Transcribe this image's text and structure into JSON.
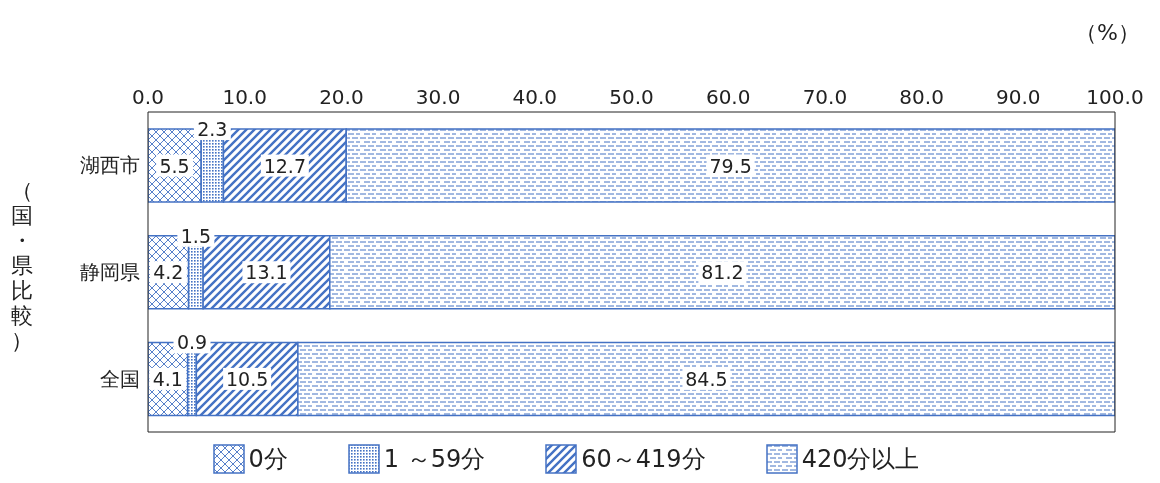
{
  "chart_data": {
    "type": "bar",
    "orientation": "horizontal",
    "stacked": true,
    "ylabel": "（国・県比較）",
    "annotations": [
      "（%）"
    ],
    "categories": [
      "湖西市",
      "静岡県",
      "全国"
    ],
    "series": [
      {
        "name": "0分",
        "color": "#4472c4",
        "values": [
          5.5,
          4.2,
          4.1
        ]
      },
      {
        "name": "1 ～59分",
        "color": "#4472c4",
        "values": [
          2.3,
          1.5,
          0.9
        ]
      },
      {
        "name": "60～419分",
        "color": "#4472c4",
        "values": [
          12.7,
          13.1,
          10.5
        ]
      },
      {
        "name": "420分以上",
        "color": "#4472c4",
        "values": [
          79.5,
          81.2,
          84.5
        ]
      }
    ],
    "xlim": [
      0,
      100
    ],
    "xticks": [
      {
        "value": 0,
        "label": "0.0"
      },
      {
        "value": 10,
        "label": "10.0"
      },
      {
        "value": 20,
        "label": "20.0"
      },
      {
        "value": 30,
        "label": "30.0"
      },
      {
        "value": 40,
        "label": "40.0"
      },
      {
        "value": 50,
        "label": "50.0"
      },
      {
        "value": 60,
        "label": "60.0"
      },
      {
        "value": 70,
        "label": "70.0"
      },
      {
        "value": 80,
        "label": "80.0"
      },
      {
        "value": 90,
        "label": "90.0"
      },
      {
        "value": 100,
        "label": "100.0"
      }
    ],
    "data_labels": true,
    "legend": "bottom",
    "grid": false
  }
}
